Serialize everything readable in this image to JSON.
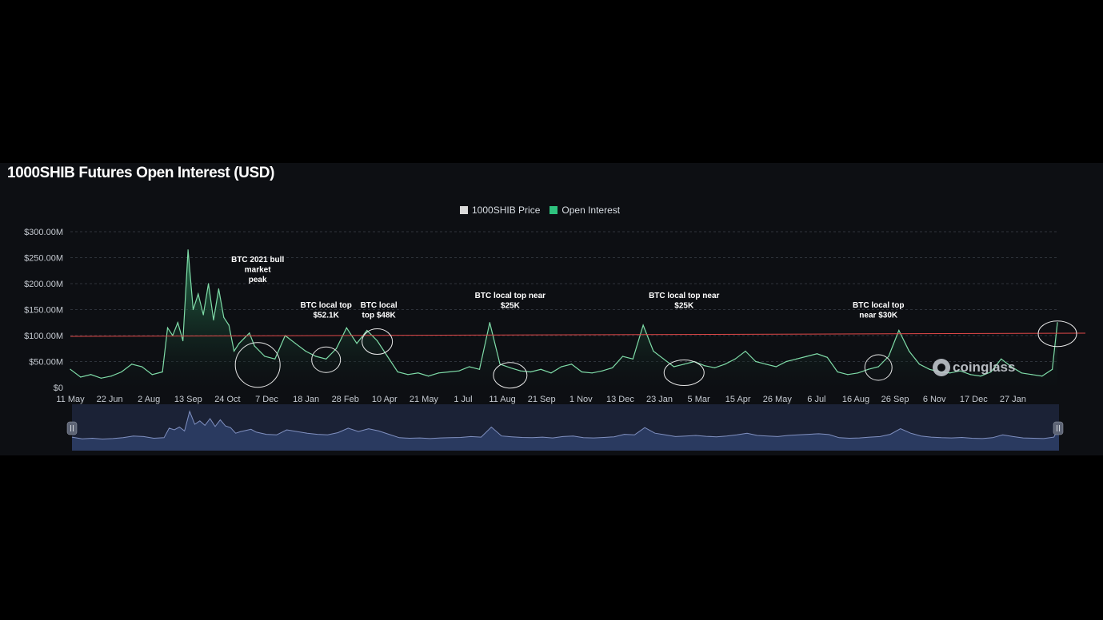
{
  "title": "1000SHIB Futures Open Interest (USD)",
  "legend": {
    "price_label": "1000SHIB Price",
    "oi_label": "Open Interest",
    "price_color": "#d9d9d9",
    "oi_color": "#2ec27e"
  },
  "watermark": "coinglass",
  "colors": {
    "background": "#0d0f13",
    "area_line": "#7fdca8",
    "area_fill_top": "#2a8a5a",
    "reference_line": "#e04848",
    "grid": "#2e333b",
    "navigator_fill": "#2a3a60",
    "navigator_line": "#8090c0"
  },
  "chart_data": {
    "type": "area",
    "series": [
      {
        "name": "Open Interest",
        "x_index": [
          0,
          2,
          4,
          6,
          8,
          10,
          12,
          14,
          16,
          18,
          19,
          20,
          21,
          22,
          23,
          24,
          25,
          26,
          27,
          28,
          29,
          30,
          31,
          32,
          33,
          34,
          35,
          36,
          38,
          40,
          42,
          44,
          46,
          48,
          50,
          52,
          54,
          56,
          58,
          60,
          62,
          64,
          66,
          68,
          70,
          72,
          74,
          76,
          78,
          80,
          82,
          84,
          86,
          88,
          90,
          92,
          94,
          96,
          98,
          100,
          102,
          104,
          106,
          108,
          110,
          112,
          114,
          116,
          118,
          120,
          122,
          124,
          126,
          128,
          130,
          132,
          134,
          136,
          138,
          140,
          142,
          144,
          146,
          148,
          150,
          152,
          154,
          156,
          158,
          160,
          162,
          164,
          166,
          168,
          170,
          172,
          174,
          176,
          178,
          180,
          182,
          184,
          186,
          188,
          190,
          192,
          193
        ],
        "values": [
          35,
          20,
          25,
          18,
          22,
          30,
          45,
          40,
          25,
          30,
          115,
          100,
          125,
          90,
          265,
          150,
          180,
          140,
          200,
          130,
          190,
          135,
          120,
          70,
          85,
          95,
          105,
          80,
          60,
          55,
          100,
          85,
          70,
          60,
          55,
          75,
          115,
          85,
          110,
          90,
          60,
          30,
          25,
          28,
          22,
          28,
          30,
          32,
          40,
          35,
          125,
          45,
          38,
          32,
          30,
          35,
          28,
          40,
          45,
          30,
          28,
          32,
          38,
          60,
          55,
          120,
          70,
          55,
          40,
          45,
          50,
          42,
          38,
          45,
          55,
          70,
          50,
          45,
          40,
          50,
          55,
          60,
          65,
          58,
          30,
          25,
          28,
          35,
          40,
          60,
          110,
          70,
          45,
          35,
          30,
          28,
          32,
          25,
          22,
          30,
          55,
          40,
          28,
          25,
          22,
          35,
          125
        ]
      }
    ],
    "reference_line": {
      "value": 100
    },
    "x_ticks": [
      "11 May",
      "22 Jun",
      "2 Aug",
      "13 Sep",
      "24 Oct",
      "7 Dec",
      "18 Jan",
      "28 Feb",
      "10 Apr",
      "21 May",
      "1 Jul",
      "11 Aug",
      "21 Sep",
      "1 Nov",
      "13 Dec",
      "23 Jan",
      "5 Mar",
      "15 Apr",
      "26 May",
      "6 Jul",
      "16 Aug",
      "26 Sep",
      "6 Nov",
      "17 Dec",
      "27 Jan"
    ],
    "y_ticks": [
      "$0",
      "$50.00M",
      "$100.00M",
      "$150.00M",
      "$200.00M",
      "$250.00M",
      "$300.00M"
    ],
    "ylim": [
      0,
      300
    ],
    "grid": true,
    "legend_position": "top-center",
    "annotations": [
      {
        "text": [
          "BTC 2021 bull",
          "market",
          "peak"
        ],
        "x_index": 36
      },
      {
        "text": [
          "BTC local top",
          "$52.1K"
        ],
        "x_index": 50
      },
      {
        "text": [
          "BTC local",
          "top $48K"
        ],
        "x_index": 60
      },
      {
        "text": [
          "BTC local top near",
          "$25K"
        ],
        "x_index": 86
      },
      {
        "text": [
          "BTC local top near",
          "$25K"
        ],
        "x_index": 120
      },
      {
        "text": [
          "BTC local top",
          "near $30K"
        ],
        "x_index": 158
      },
      {
        "text": [],
        "x_index": 193
      }
    ]
  }
}
